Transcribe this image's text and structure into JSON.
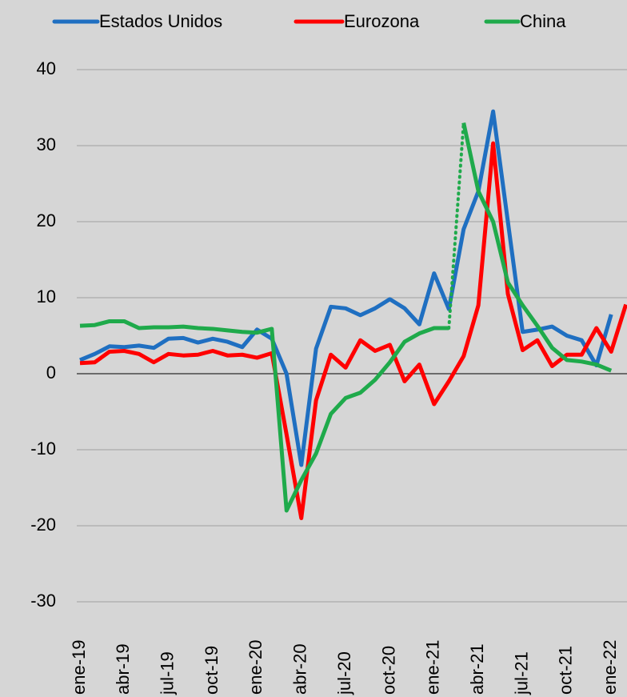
{
  "chart_data": {
    "type": "line",
    "categories": [
      "ene-19",
      null,
      null,
      "abr-19",
      null,
      null,
      "jul-19",
      null,
      null,
      "oct-19",
      null,
      null,
      "ene-20",
      null,
      null,
      "abr-20",
      null,
      null,
      "jul-20",
      null,
      null,
      "oct-20",
      null,
      null,
      "ene-21",
      null,
      null,
      "abr-21",
      null,
      null,
      "jul-21",
      null,
      null,
      "oct-21",
      null,
      null,
      "ene-22",
      null
    ],
    "series": [
      {
        "name": "Estados Unidos",
        "color": "#1f6fc1",
        "values": [
          1.8,
          2.6,
          3.6,
          3.5,
          3.7,
          3.4,
          4.6,
          4.7,
          4.1,
          4.6,
          4.2,
          3.5,
          5.8,
          4.6,
          0,
          -12,
          3.3,
          8.8,
          8.6,
          7.7,
          8.6,
          9.8,
          8.6,
          6.5,
          13.2,
          8.5,
          19,
          24,
          34.5,
          20,
          5.5,
          5.8,
          6.2,
          5,
          4.4,
          1.1,
          7.8,
          null
        ]
      },
      {
        "name": "Eurozona",
        "color": "#ff0000",
        "values": [
          1.4,
          1.5,
          2.9,
          3.0,
          2.6,
          1.5,
          2.6,
          2.4,
          2.5,
          3.0,
          2.4,
          2.5,
          2.1,
          2.7,
          -8,
          -19,
          -3.5,
          2.5,
          0.8,
          4.4,
          3.0,
          3.8,
          -1,
          1.2,
          -4,
          -1,
          2.3,
          9,
          30.3,
          10.5,
          3.1,
          4.4,
          1,
          2.5,
          2.5,
          6,
          2.9,
          9.1
        ]
      },
      {
        "name": "China",
        "color": "#1faa4b",
        "dotted_segment": [
          25,
          26
        ],
        "values": [
          6.3,
          6.4,
          6.9,
          6.9,
          6.0,
          6.1,
          6.1,
          6.2,
          6.0,
          5.9,
          5.7,
          5.5,
          5.4,
          5.9,
          -18,
          -14,
          -10.5,
          -5.3,
          -3.2,
          -2.5,
          -0.8,
          1.5,
          4.2,
          5.3,
          6,
          6,
          33,
          24,
          20,
          12,
          9,
          6.3,
          3.4,
          1.8,
          1.6,
          1.2,
          0.4,
          null
        ]
      }
    ],
    "ylim": [
      -30,
      40
    ],
    "yticks": [
      -30,
      -20,
      -10,
      0,
      10,
      20,
      30,
      40
    ],
    "grid": true,
    "legend": "top"
  }
}
